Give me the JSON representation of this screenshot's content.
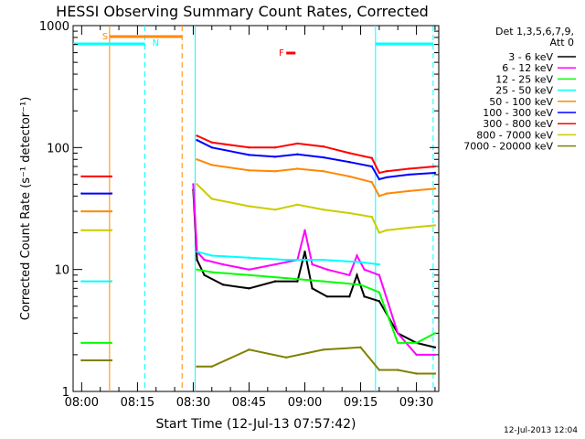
{
  "chart_data": {
    "type": "line",
    "title": "HESSI Observing Summary Count Rates, Corrected",
    "xlabel": "Start Time (12-Jul-13 07:57:42)",
    "ylabel": "Corrected Count Rate (s⁻¹ detector⁻¹)",
    "yscale": "log",
    "ylim": [
      1,
      1000
    ],
    "xlim_minutes": [
      -2.3,
      96
    ],
    "xticks": [
      "08:00",
      "08:15",
      "08:30",
      "08:45",
      "09:00",
      "09:15",
      "09:30"
    ],
    "yticks": [
      "1",
      "10",
      "100",
      "1000"
    ],
    "legend_header": [
      "Det 1,3,5,6,7,9,",
      "Att 0"
    ],
    "legend_position": "right",
    "series": [
      {
        "name": "3 - 6 keV",
        "color": "#000000",
        "x": [
          0,
          8,
          30,
          31,
          33,
          38,
          45,
          52,
          58,
          60,
          62,
          66,
          72,
          74,
          76,
          80,
          85,
          90,
          95
        ],
        "y": [
          null,
          null,
          45,
          12,
          9,
          7.5,
          7,
          8,
          8,
          14,
          7,
          6,
          6,
          9,
          6,
          5.5,
          3,
          2.5,
          2.3
        ]
      },
      {
        "name": "6 - 12 keV",
        "color": "#ff00ff",
        "x": [
          0,
          8,
          30,
          31,
          33,
          38,
          45,
          52,
          58,
          60,
          62,
          66,
          72,
          74,
          76,
          80,
          85,
          90,
          95
        ],
        "y": [
          null,
          null,
          50,
          14,
          12,
          11,
          10,
          11,
          12,
          21,
          11,
          10,
          9,
          13,
          10,
          9,
          3,
          2,
          2
        ]
      },
      {
        "name": "12 - 25 keV",
        "color": "#00ff00",
        "x": [
          0,
          8,
          30,
          31,
          35,
          45,
          55,
          65,
          75,
          80,
          85,
          90,
          95
        ],
        "y": [
          2.5,
          2.5,
          null,
          10,
          9.5,
          9,
          8.5,
          8,
          7.5,
          6.5,
          2.5,
          2.5,
          3
        ]
      },
      {
        "name": "25 - 50 keV",
        "color": "#00ffff",
        "x": [
          0,
          8,
          30,
          31,
          35,
          45,
          55,
          65,
          75,
          80,
          85,
          90,
          95
        ],
        "y": [
          8,
          8,
          null,
          14,
          13,
          12.5,
          12,
          12,
          11.5,
          11,
          null,
          null,
          null
        ]
      },
      {
        "name": "50 - 100 keV",
        "color": "#ff8800",
        "x": [
          0,
          8,
          30,
          31,
          35,
          45,
          52,
          58,
          65,
          72,
          78,
          80,
          82,
          88,
          95
        ],
        "y": [
          30,
          30,
          null,
          80,
          72,
          65,
          64,
          67,
          64,
          58,
          52,
          40,
          42,
          44,
          46
        ]
      },
      {
        "name": "100 - 300 keV",
        "color": "#0000ff",
        "x": [
          0,
          8,
          30,
          31,
          35,
          45,
          52,
          58,
          65,
          72,
          78,
          80,
          82,
          88,
          95
        ],
        "y": [
          42,
          42,
          null,
          115,
          100,
          87,
          84,
          88,
          83,
          76,
          70,
          55,
          57,
          60,
          62
        ]
      },
      {
        "name": "300 - 800 keV",
        "color": "#ff0000",
        "x": [
          0,
          8,
          30,
          31,
          35,
          45,
          52,
          58,
          65,
          72,
          78,
          80,
          82,
          88,
          95
        ],
        "y": [
          58,
          58,
          null,
          125,
          110,
          100,
          100,
          108,
          102,
          90,
          82,
          62,
          64,
          67,
          70
        ]
      },
      {
        "name": "800 - 7000 keV",
        "color": "#cccc00",
        "x": [
          0,
          8,
          30,
          31,
          35,
          45,
          52,
          58,
          65,
          72,
          78,
          80,
          82,
          88,
          95
        ],
        "y": [
          21,
          21,
          null,
          50,
          38,
          33,
          31,
          34,
          31,
          29,
          27,
          20,
          21,
          22,
          23
        ]
      },
      {
        "name": "7000 - 20000 keV",
        "color": "#808000",
        "x": [
          0,
          8,
          30,
          31,
          35,
          45,
          55,
          65,
          75,
          80,
          85,
          90,
          95
        ],
        "y": [
          1.8,
          1.8,
          null,
          1.6,
          1.6,
          2.2,
          1.9,
          2.2,
          2.3,
          1.5,
          1.5,
          1.4,
          1.4
        ]
      }
    ],
    "annotations": [
      {
        "label": "S",
        "color": "#ff8800"
      },
      {
        "label": "N",
        "color": "#00ffff"
      },
      {
        "label": "F",
        "color": "#ff0000"
      }
    ],
    "footer": "12-Jul-2013 12:04"
  }
}
